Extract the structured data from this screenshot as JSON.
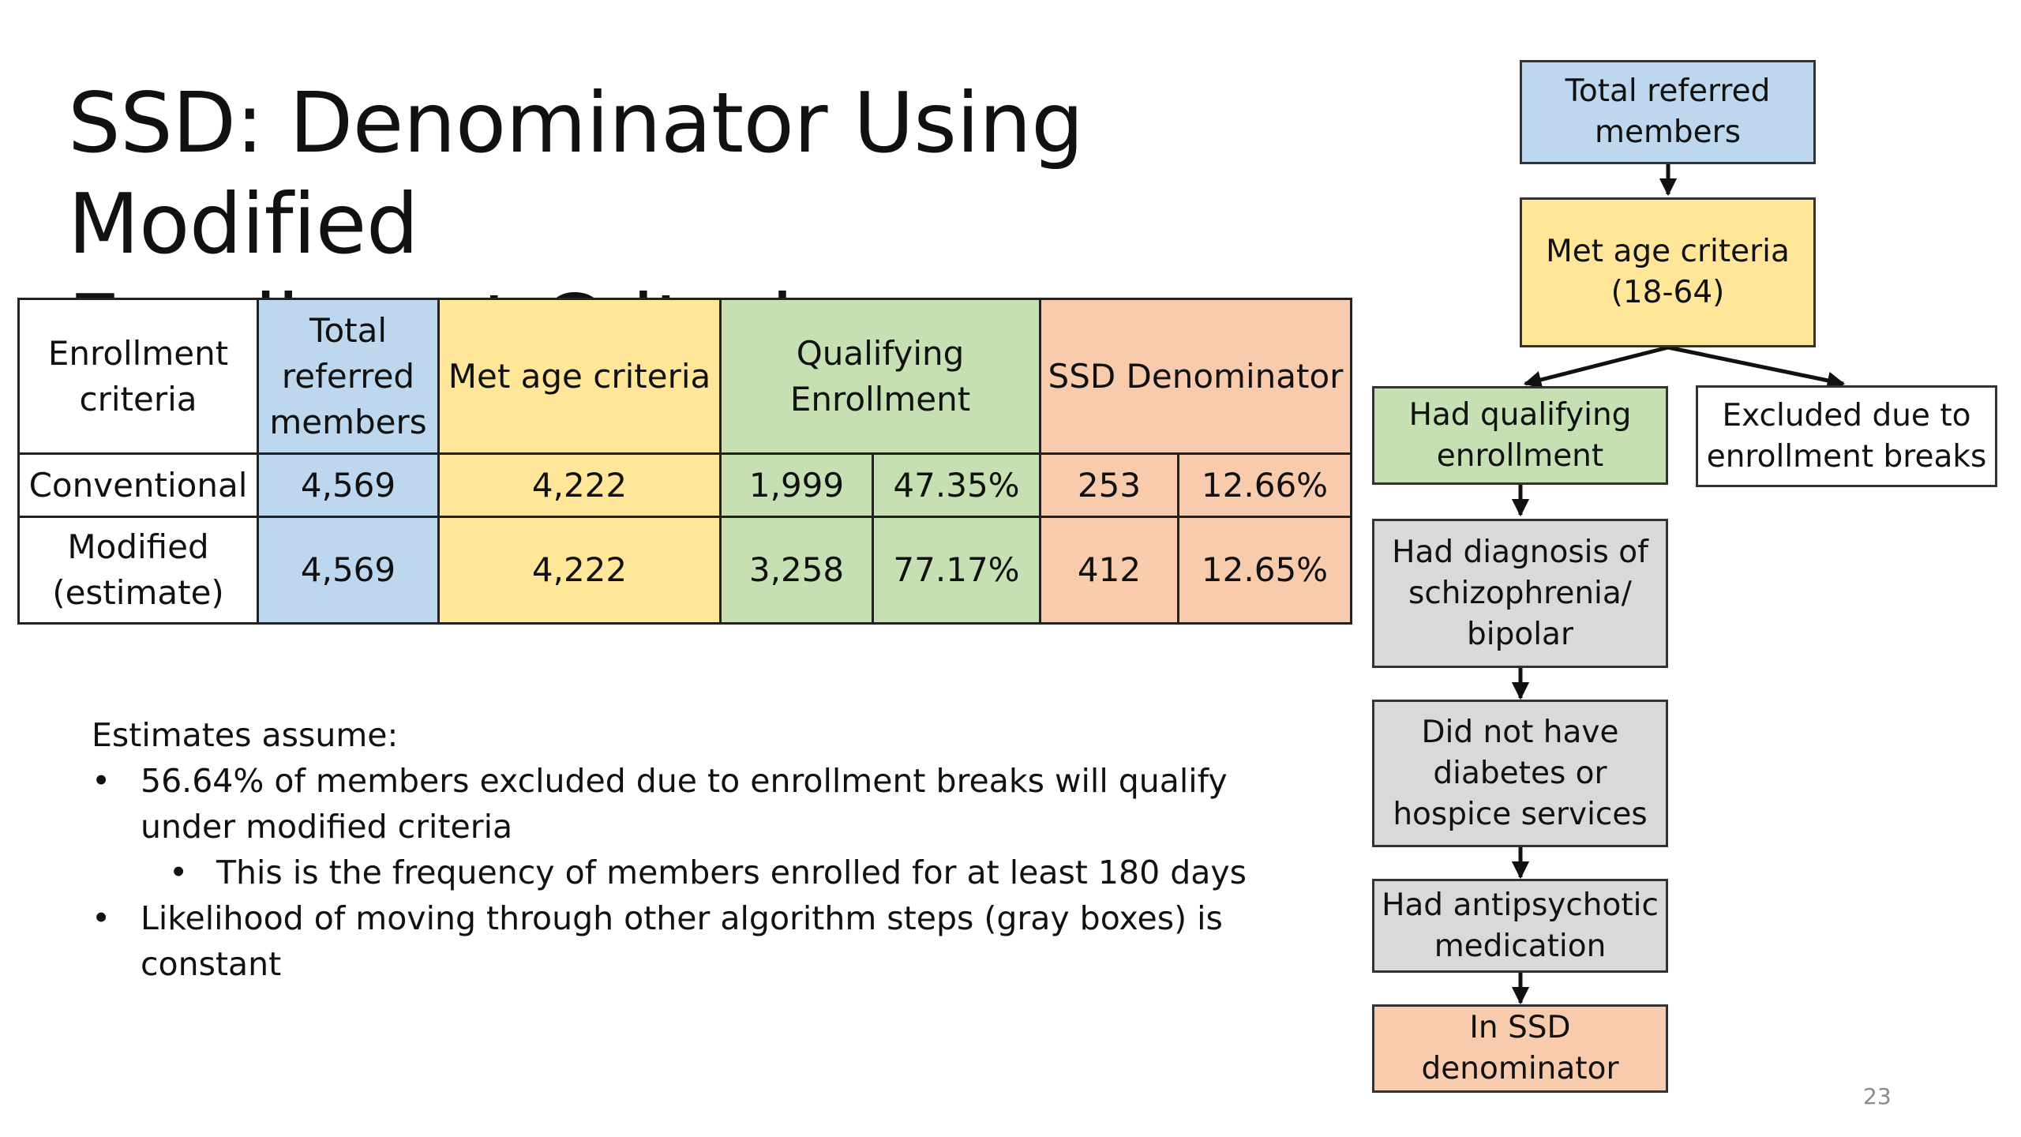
{
  "slide": {
    "title_line1": "SSD: Denominator Using Modified",
    "title_line2": "Enrollment Criteria",
    "page_number": "23"
  },
  "table": {
    "headers": {
      "criteria": [
        "Enrollment",
        "criteria"
      ],
      "total": [
        "Total",
        "referred",
        "members"
      ],
      "age": "Met age criteria",
      "qualifying": [
        "Qualifying",
        "Enrollment"
      ],
      "ssd": "SSD Denominator"
    },
    "rows": [
      {
        "label": [
          "Conventional"
        ],
        "total": "4,569",
        "age": "4,222",
        "q_count": "1,999",
        "q_pct": "47.35%",
        "ssd_count": "253",
        "ssd_pct": "12.66%"
      },
      {
        "label": [
          "Modified",
          "(estimate)"
        ],
        "total": "4,569",
        "age": "4,222",
        "q_count": "3,258",
        "q_pct": "77.17%",
        "ssd_count": "412",
        "ssd_pct": "12.65%"
      }
    ],
    "colors": {
      "blue": "#bdd7ee",
      "yellow": "#ffe699",
      "green": "#c6e0b4",
      "salmon": "#f8cbad"
    }
  },
  "notes": {
    "heading": "Estimates assume:",
    "bullet1_line1": "56.64% of members excluded due to enrollment breaks will qualify",
    "bullet1_line2": "under modified criteria",
    "sub_bullet": "This is the frequency of members enrolled for at least 180 days",
    "bullet2_line1": "Likelihood of moving through other algorithm steps (gray boxes) is",
    "bullet2_line2": "constant",
    "bullet_glyph": "•"
  },
  "flowchart": {
    "total": [
      "Total referred",
      "members"
    ],
    "age": [
      "Met age criteria",
      "(18-64)"
    ],
    "qualifying": [
      "Had qualifying",
      "enrollment"
    ],
    "excluded": [
      "Excluded due to",
      "enrollment breaks"
    ],
    "diagnosis": [
      "Had diagnosis of",
      "schizophrenia/",
      "bipolar"
    ],
    "no_diabetes": [
      "Did not have",
      "diabetes or",
      "hospice services"
    ],
    "antipsychotic": [
      "Had antipsychotic",
      "medication"
    ],
    "ssd": [
      "In SSD",
      "denominator"
    ],
    "colors": {
      "blue": "#bdd7ee",
      "yellow": "#ffe699",
      "green": "#c6e0b4",
      "gray": "#d9d9d9",
      "salmon": "#f8cbad",
      "white": "#ffffff"
    }
  }
}
